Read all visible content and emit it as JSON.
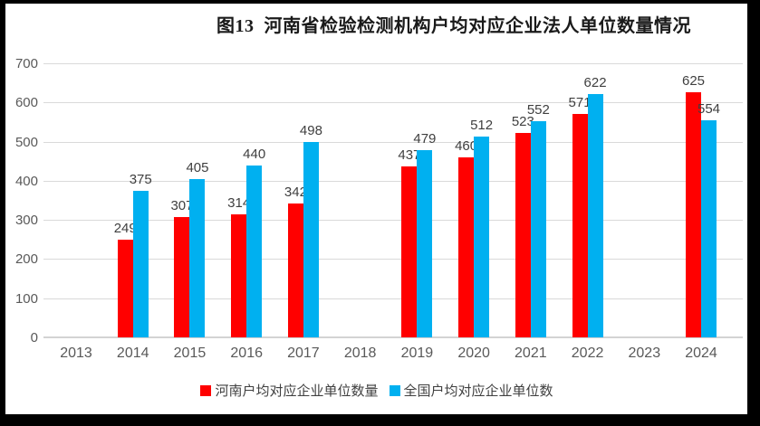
{
  "title": "图13  河南省检验检测机构户均对应企业法人单位数量情况",
  "chart_data": {
    "type": "bar",
    "title": "图13  河南省检验检测机构户均对应企业法人单位数量情况",
    "categories": [
      "2013",
      "2014",
      "2015",
      "2016",
      "2017",
      "2018",
      "2019",
      "2020",
      "2021",
      "2022",
      "2023",
      "2024"
    ],
    "series": [
      {
        "name": "河南户均对应企业单位数量",
        "color": "#ff0000",
        "values": [
          null,
          249,
          307,
          314,
          342,
          null,
          437,
          460,
          523,
          571,
          null,
          625
        ]
      },
      {
        "name": "全国户均对应企业单位数",
        "color": "#00b0f0",
        "values": [
          null,
          375,
          405,
          440,
          498,
          null,
          479,
          512,
          552,
          622,
          null,
          554
        ]
      }
    ],
    "xlabel": "",
    "ylabel": "",
    "ylim": [
      0,
      700
    ],
    "yticks": [
      0,
      100,
      200,
      300,
      400,
      500,
      600,
      700
    ],
    "grid": true,
    "legend_position": "bottom",
    "data_labels": true
  },
  "colors": {
    "bar_henan": "#ff0000",
    "bar_national": "#00b0f0",
    "gridline": "#d9d9d9",
    "axis_line": "#d3d3d3",
    "tick_label": "#595959",
    "value_label": "#3f3f3f",
    "title_text": "#1a1a1a",
    "scan_frame": "#000000",
    "background": "#ffffff"
  }
}
